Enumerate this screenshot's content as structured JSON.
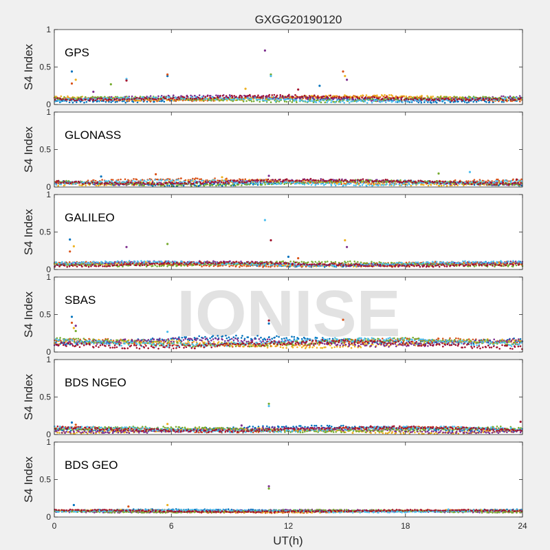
{
  "chart_data": {
    "type": "scatter",
    "title": "GXGG20190120",
    "xlabel": "UT(h)",
    "ylabel": "S4 Index",
    "xlim": [
      0,
      24
    ],
    "ylim": [
      0,
      1
    ],
    "xticks": [
      0,
      6,
      12,
      18,
      24
    ],
    "xtick_labels": [
      "0",
      "6",
      "12",
      "18",
      "24"
    ],
    "yticks": [
      0,
      0.5,
      1
    ],
    "ytick_labels": [
      "0",
      "0.5",
      "1"
    ],
    "grid": false,
    "watermark": "IONISE",
    "series_colors": [
      "#0072bd",
      "#d95319",
      "#edb120",
      "#7e2f8e",
      "#77ac30",
      "#4dbeee",
      "#a2142f"
    ],
    "panels": [
      {
        "label": "GPS",
        "baseline": 0.07,
        "spread": 0.04,
        "spikes": [
          {
            "x": 0.9,
            "y": 0.44
          },
          {
            "x": 0.9,
            "y": 0.28
          },
          {
            "x": 1.1,
            "y": 0.33
          },
          {
            "x": 2.0,
            "y": 0.17
          },
          {
            "x": 2.9,
            "y": 0.27
          },
          {
            "x": 3.7,
            "y": 0.34
          },
          {
            "x": 3.7,
            "y": 0.32
          },
          {
            "x": 5.8,
            "y": 0.38
          },
          {
            "x": 5.8,
            "y": 0.4
          },
          {
            "x": 9.8,
            "y": 0.21
          },
          {
            "x": 10.8,
            "y": 0.72
          },
          {
            "x": 11.1,
            "y": 0.4
          },
          {
            "x": 11.1,
            "y": 0.38
          },
          {
            "x": 12.5,
            "y": 0.2
          },
          {
            "x": 13.6,
            "y": 0.25
          },
          {
            "x": 14.8,
            "y": 0.44
          },
          {
            "x": 14.9,
            "y": 0.38
          },
          {
            "x": 15.0,
            "y": 0.33
          }
        ]
      },
      {
        "label": "GLONASS",
        "baseline": 0.06,
        "spread": 0.04,
        "spikes": [
          {
            "x": 2.4,
            "y": 0.14
          },
          {
            "x": 5.2,
            "y": 0.17
          },
          {
            "x": 8.6,
            "y": 0.13
          },
          {
            "x": 11.0,
            "y": 0.15
          },
          {
            "x": 19.7,
            "y": 0.18
          },
          {
            "x": 21.3,
            "y": 0.2
          },
          {
            "x": 23.7,
            "y": 0.1
          }
        ]
      },
      {
        "label": "GALILEO",
        "baseline": 0.07,
        "spread": 0.035,
        "spikes": [
          {
            "x": 0.8,
            "y": 0.4
          },
          {
            "x": 0.8,
            "y": 0.24
          },
          {
            "x": 1.0,
            "y": 0.31
          },
          {
            "x": 3.7,
            "y": 0.3
          },
          {
            "x": 5.8,
            "y": 0.34
          },
          {
            "x": 10.8,
            "y": 0.66
          },
          {
            "x": 11.1,
            "y": 0.39
          },
          {
            "x": 12.0,
            "y": 0.17
          },
          {
            "x": 12.5,
            "y": 0.15
          },
          {
            "x": 14.9,
            "y": 0.39
          },
          {
            "x": 15.0,
            "y": 0.3
          }
        ]
      },
      {
        "label": "SBAS",
        "baseline": 0.13,
        "spread": 0.06,
        "spikes": [
          {
            "x": 0.9,
            "y": 0.47
          },
          {
            "x": 0.9,
            "y": 0.39
          },
          {
            "x": 1.0,
            "y": 0.32
          },
          {
            "x": 1.1,
            "y": 0.35
          },
          {
            "x": 1.1,
            "y": 0.28
          },
          {
            "x": 5.8,
            "y": 0.27
          },
          {
            "x": 11.0,
            "y": 0.42
          },
          {
            "x": 11.0,
            "y": 0.38
          },
          {
            "x": 14.8,
            "y": 0.43
          }
        ]
      },
      {
        "label": "BDS NGEO",
        "baseline": 0.06,
        "spread": 0.04,
        "spikes": [
          {
            "x": 0.9,
            "y": 0.16
          },
          {
            "x": 1.1,
            "y": 0.13
          },
          {
            "x": 5.8,
            "y": 0.14
          },
          {
            "x": 9.6,
            "y": 0.12
          },
          {
            "x": 11.0,
            "y": 0.41
          },
          {
            "x": 11.0,
            "y": 0.38
          },
          {
            "x": 23.9,
            "y": 0.17
          }
        ]
      },
      {
        "label": "BDS GEO",
        "baseline": 0.08,
        "spread": 0.02,
        "spikes": [
          {
            "x": 1.0,
            "y": 0.16
          },
          {
            "x": 3.8,
            "y": 0.14
          },
          {
            "x": 5.8,
            "y": 0.16
          },
          {
            "x": 11.0,
            "y": 0.41
          },
          {
            "x": 11.0,
            "y": 0.38
          },
          {
            "x": 20.2,
            "y": 0.1
          }
        ]
      }
    ]
  }
}
